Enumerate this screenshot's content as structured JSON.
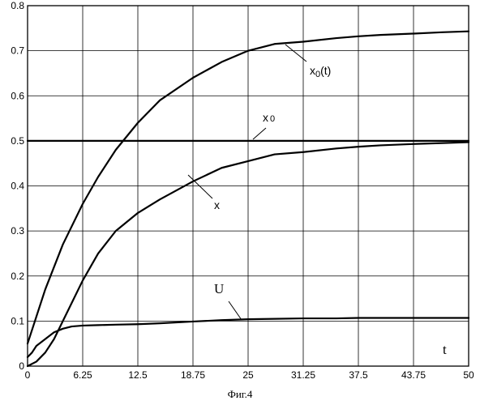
{
  "chart_data": {
    "type": "line",
    "title": "",
    "xlabel": "t",
    "ylabel": "",
    "xlim": [
      0,
      50
    ],
    "ylim": [
      0,
      0.8
    ],
    "x_ticks": [
      "0",
      "6.25",
      "12.5",
      "18.75",
      "25",
      "31.25",
      "37.5",
      "43.75",
      "50"
    ],
    "y_ticks": [
      "0",
      "0.1",
      "0.2",
      "0.3",
      "0.4",
      "0.5",
      "0.6",
      "0.7",
      "0.8"
    ],
    "grid": true,
    "series": [
      {
        "name": "x0(t)",
        "x": [
          0,
          2,
          4,
          6.25,
          8,
          10,
          12.5,
          15,
          18.75,
          22,
          25,
          28,
          31.25,
          35,
          37.5,
          40,
          43.75,
          47,
          50
        ],
        "y": [
          0.05,
          0.17,
          0.27,
          0.36,
          0.42,
          0.48,
          0.54,
          0.59,
          0.64,
          0.675,
          0.7,
          0.715,
          0.72,
          0.728,
          0.732,
          0.735,
          0.738,
          0.741,
          0.743
        ]
      },
      {
        "name": "x0",
        "x": [
          0,
          50
        ],
        "y": [
          0.5,
          0.5
        ]
      },
      {
        "name": "x",
        "x": [
          0,
          1,
          2,
          3,
          4,
          5,
          6.25,
          8,
          10,
          12.5,
          15,
          18.75,
          22,
          25,
          28,
          31.25,
          35,
          37.5,
          40,
          43.75,
          47,
          50
        ],
        "y": [
          0.0,
          0.01,
          0.03,
          0.06,
          0.1,
          0.14,
          0.19,
          0.25,
          0.3,
          0.34,
          0.37,
          0.41,
          0.44,
          0.455,
          0.47,
          0.475,
          0.483,
          0.487,
          0.49,
          0.493,
          0.495,
          0.497
        ]
      },
      {
        "name": "U",
        "x": [
          0,
          0.5,
          1,
          2,
          3,
          4,
          5,
          6.25,
          8,
          10,
          12.5,
          15,
          18.75,
          22,
          25,
          28,
          31.25,
          35,
          37.5,
          40,
          43.75,
          47,
          50
        ],
        "y": [
          0.02,
          0.03,
          0.045,
          0.06,
          0.075,
          0.083,
          0.088,
          0.09,
          0.091,
          0.092,
          0.093,
          0.095,
          0.099,
          0.102,
          0.104,
          0.105,
          0.106,
          0.106,
          0.107,
          0.107,
          0.107,
          0.107,
          0.107
        ]
      }
    ],
    "labels": {
      "x0t_main": "x",
      "x0t_sub": "0",
      "x0t_tail": "(t)",
      "x0_main": "x",
      "x0_sub": "0",
      "x_label": "x",
      "u_label": "U",
      "t_label": "t"
    },
    "caption": "Фиг.4"
  }
}
